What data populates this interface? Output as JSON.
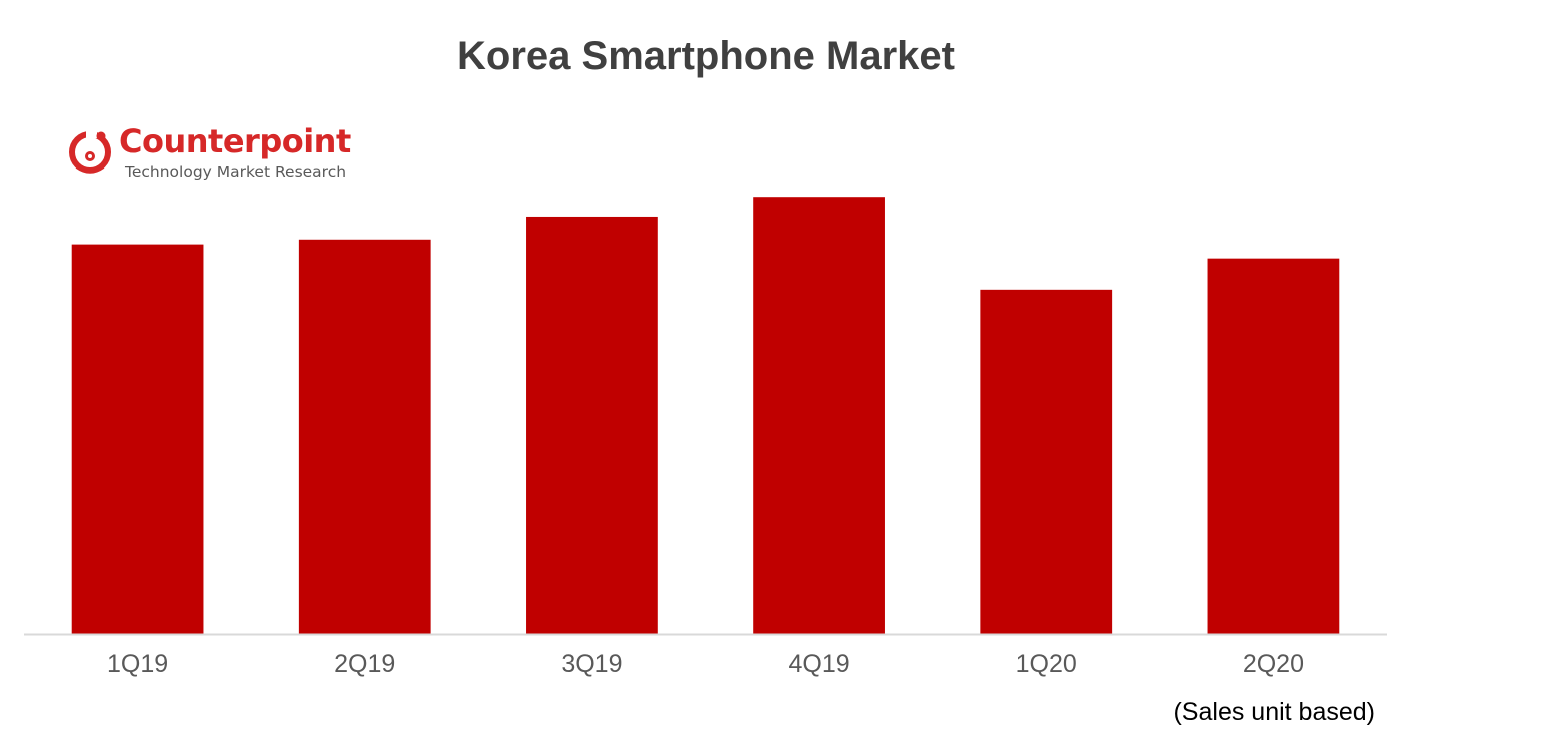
{
  "page": {
    "colors": {
      "bar": "#C00000",
      "axis": "#D9D9D9",
      "tick_label": "#595959",
      "title": "#404040",
      "brand": "#D62828"
    }
  },
  "logo": {
    "name": "Counterpoint",
    "tagline": "Technology Market Research",
    "icon": "counterpoint-logo-icon"
  },
  "chart_data": {
    "type": "bar",
    "title": "Korea Smartphone Market",
    "categories": [
      "1Q19",
      "2Q19",
      "3Q19",
      "4Q19",
      "1Q20",
      "2Q20"
    ],
    "values": [
      88.7,
      89.8,
      95.0,
      99.5,
      78.4,
      85.5
    ],
    "ylim": [
      0,
      100
    ],
    "note": "(Sales unit based)",
    "grid": false,
    "legend": "none"
  }
}
